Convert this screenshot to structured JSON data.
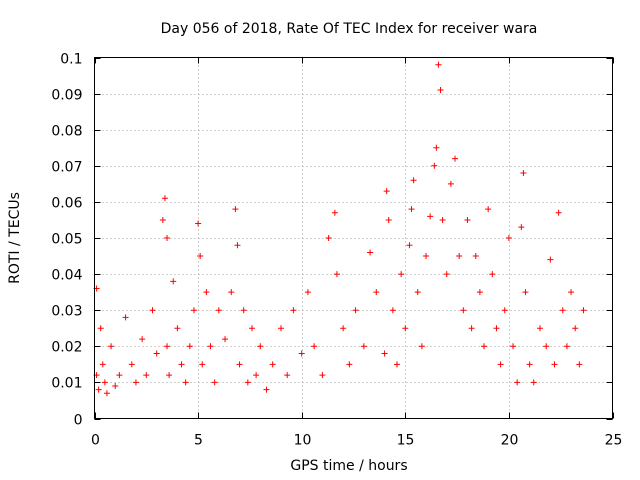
{
  "chart_data": {
    "type": "scatter",
    "title": "Day 056 of 2018, Rate Of TEC Index for receiver wara",
    "xlabel": "GPS time / hours",
    "ylabel": "ROTI / TECUs",
    "xlim": [
      0,
      25
    ],
    "ylim": [
      0,
      0.1
    ],
    "xticks": [
      0,
      5,
      10,
      15,
      20,
      25
    ],
    "xtick_labels": [
      "0",
      "5",
      "10",
      "15",
      "20",
      "25"
    ],
    "yticks": [
      0,
      0.01,
      0.02,
      0.03,
      0.04,
      0.05,
      0.06,
      0.07,
      0.08,
      0.09,
      0.1
    ],
    "ytick_labels": [
      "0",
      "0.01",
      "0.02",
      "0.03",
      "0.04",
      "0.05",
      "0.06",
      "0.07",
      "0.08",
      "0.09",
      "0.1"
    ],
    "grid": true,
    "marker": "+",
    "color": "#ff0000",
    "series": [
      {
        "name": "ROTI",
        "x": [
          0.1,
          0.1,
          0.2,
          0.3,
          0.4,
          0.5,
          0.6,
          0.8,
          1.0,
          1.2,
          1.5,
          1.8,
          2.0,
          2.3,
          2.5,
          2.8,
          3.0,
          3.3,
          3.4,
          3.5,
          3.5,
          3.6,
          3.8,
          4.0,
          4.2,
          4.4,
          4.6,
          4.8,
          5.0,
          5.1,
          5.2,
          5.4,
          5.6,
          5.8,
          6.0,
          6.3,
          6.6,
          6.8,
          6.9,
          7.0,
          7.2,
          7.4,
          7.6,
          7.8,
          8.0,
          8.3,
          8.6,
          9.0,
          9.3,
          9.6,
          10.0,
          10.3,
          10.6,
          11.0,
          11.3,
          11.6,
          11.7,
          12.0,
          12.3,
          12.6,
          13.0,
          13.3,
          13.6,
          14.0,
          14.1,
          14.2,
          14.4,
          14.6,
          14.8,
          15.0,
          15.2,
          15.3,
          15.4,
          15.6,
          15.8,
          16.0,
          16.2,
          16.4,
          16.5,
          16.6,
          16.7,
          16.8,
          17.0,
          17.2,
          17.4,
          17.6,
          17.8,
          18.0,
          18.2,
          18.4,
          18.6,
          18.8,
          19.0,
          19.2,
          19.4,
          19.6,
          19.8,
          20.0,
          20.2,
          20.4,
          20.6,
          20.7,
          20.8,
          21.0,
          21.2,
          21.5,
          21.8,
          22.0,
          22.2,
          22.4,
          22.6,
          22.8,
          23.0,
          23.2,
          23.4,
          23.6
        ],
        "y": [
          0.036,
          0.012,
          0.008,
          0.025,
          0.015,
          0.01,
          0.007,
          0.02,
          0.009,
          0.012,
          0.028,
          0.015,
          0.01,
          0.022,
          0.012,
          0.03,
          0.018,
          0.055,
          0.061,
          0.05,
          0.02,
          0.012,
          0.038,
          0.025,
          0.015,
          0.01,
          0.02,
          0.03,
          0.054,
          0.045,
          0.015,
          0.035,
          0.02,
          0.01,
          0.03,
          0.022,
          0.035,
          0.058,
          0.048,
          0.015,
          0.03,
          0.01,
          0.025,
          0.012,
          0.02,
          0.008,
          0.015,
          0.025,
          0.012,
          0.03,
          0.018,
          0.035,
          0.02,
          0.012,
          0.05,
          0.057,
          0.04,
          0.025,
          0.015,
          0.03,
          0.02,
          0.046,
          0.035,
          0.018,
          0.063,
          0.055,
          0.03,
          0.015,
          0.04,
          0.025,
          0.048,
          0.058,
          0.066,
          0.035,
          0.02,
          0.045,
          0.056,
          0.07,
          0.075,
          0.098,
          0.091,
          0.055,
          0.04,
          0.065,
          0.072,
          0.045,
          0.03,
          0.055,
          0.025,
          0.045,
          0.035,
          0.02,
          0.058,
          0.04,
          0.025,
          0.015,
          0.03,
          0.05,
          0.02,
          0.01,
          0.053,
          0.068,
          0.035,
          0.015,
          0.01,
          0.025,
          0.02,
          0.044,
          0.015,
          0.057,
          0.03,
          0.02,
          0.035,
          0.025,
          0.015,
          0.03
        ]
      }
    ]
  }
}
